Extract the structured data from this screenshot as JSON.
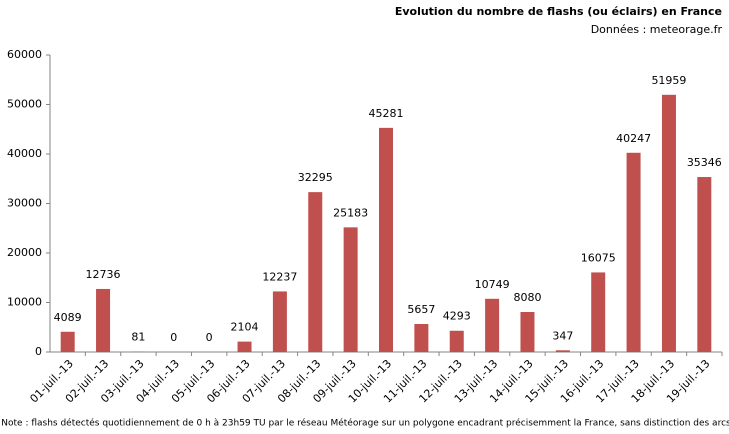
{
  "chart_data": {
    "type": "bar",
    "title": "Evolution du nombre de flashs (ou éclairs)  en France",
    "subtitle": "Données : meteorage.fr",
    "note": "Note : flashs détectés quotidiennement de 0 h à 23h59 TU par le réseau Météorage sur un polygone encadrant précisemment la France, sans distinction des arcs",
    "categories": [
      "01-juil.-13",
      "02-juil.-13",
      "03-juil.-13",
      "04-juil.-13",
      "05-juil.-13",
      "06-juil.-13",
      "07-juil.-13",
      "08-juil.-13",
      "09-juil.-13",
      "10-juil.-13",
      "11-juil.-13",
      "12-juil.-13",
      "13-juil.-13",
      "14-juil.-13",
      "15-juil.-13",
      "16-juil.-13",
      "17-juil.-13",
      "18-juil.-13",
      "19-juil.-13"
    ],
    "values": [
      4089,
      12736,
      81,
      0,
      0,
      2104,
      12237,
      32295,
      25183,
      45281,
      5657,
      4293,
      10749,
      8080,
      347,
      16075,
      40247,
      51959,
      35346
    ],
    "color": "#c0504d",
    "ylim": [
      0,
      60000
    ],
    "yticks": [
      0,
      10000,
      20000,
      30000,
      40000,
      50000,
      60000
    ],
    "grid": false
  }
}
